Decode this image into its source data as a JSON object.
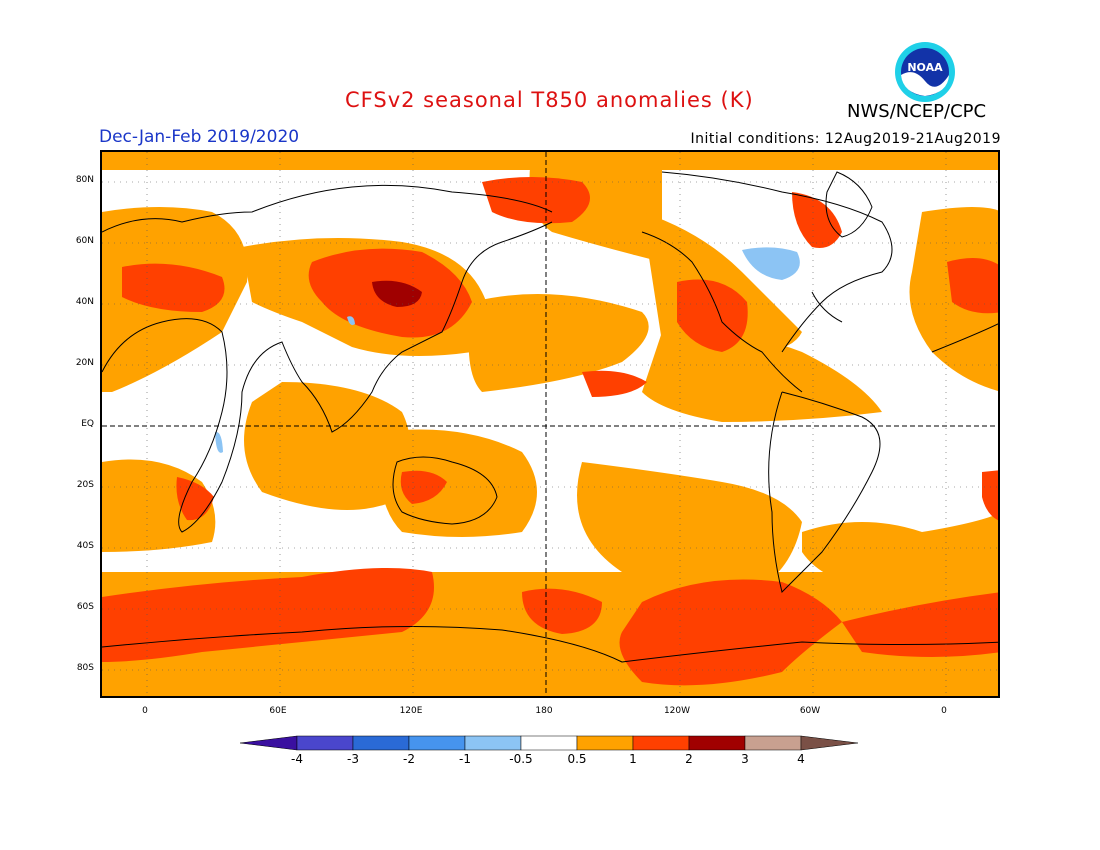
{
  "header": {
    "title": "CFSv2 seasonal T850 anomalies (K)",
    "season": "Dec-Jan-Feb 2019/2020",
    "initial_conditions": "Initial conditions: 12Aug2019-21Aug2019",
    "organization": "NWS/NCEP/CPC",
    "logo_text": "NOAA"
  },
  "axes": {
    "lat_labels": [
      "80N",
      "60N",
      "40N",
      "20N",
      "EQ",
      "20S",
      "40S",
      "60S",
      "80S"
    ],
    "lon_labels": [
      "0",
      "60E",
      "120E",
      "180",
      "120W",
      "60W",
      "0"
    ]
  },
  "legend": {
    "labels": [
      "-4",
      "-3",
      "-2",
      "-1",
      "-0.5",
      "0.5",
      "1",
      "2",
      "3",
      "4"
    ],
    "colors": [
      "#3a10a0",
      "#4a46cc",
      "#2a6ad6",
      "#4694ee",
      "#8cc4f4",
      "#ffffff",
      "#ffa200",
      "#ff4000",
      "#a00000",
      "#c8a090",
      "#7a5046"
    ]
  },
  "colors": {
    "title": "#dd1111",
    "season": "#1a36c8",
    "anomaly_0_5_to_1": "#ffa200",
    "anomaly_1_to_2": "#ff4000",
    "anomaly_2_to_3": "#a00000",
    "anomaly_neg_0_5_to_neg_1": "#8cc4f4"
  }
}
